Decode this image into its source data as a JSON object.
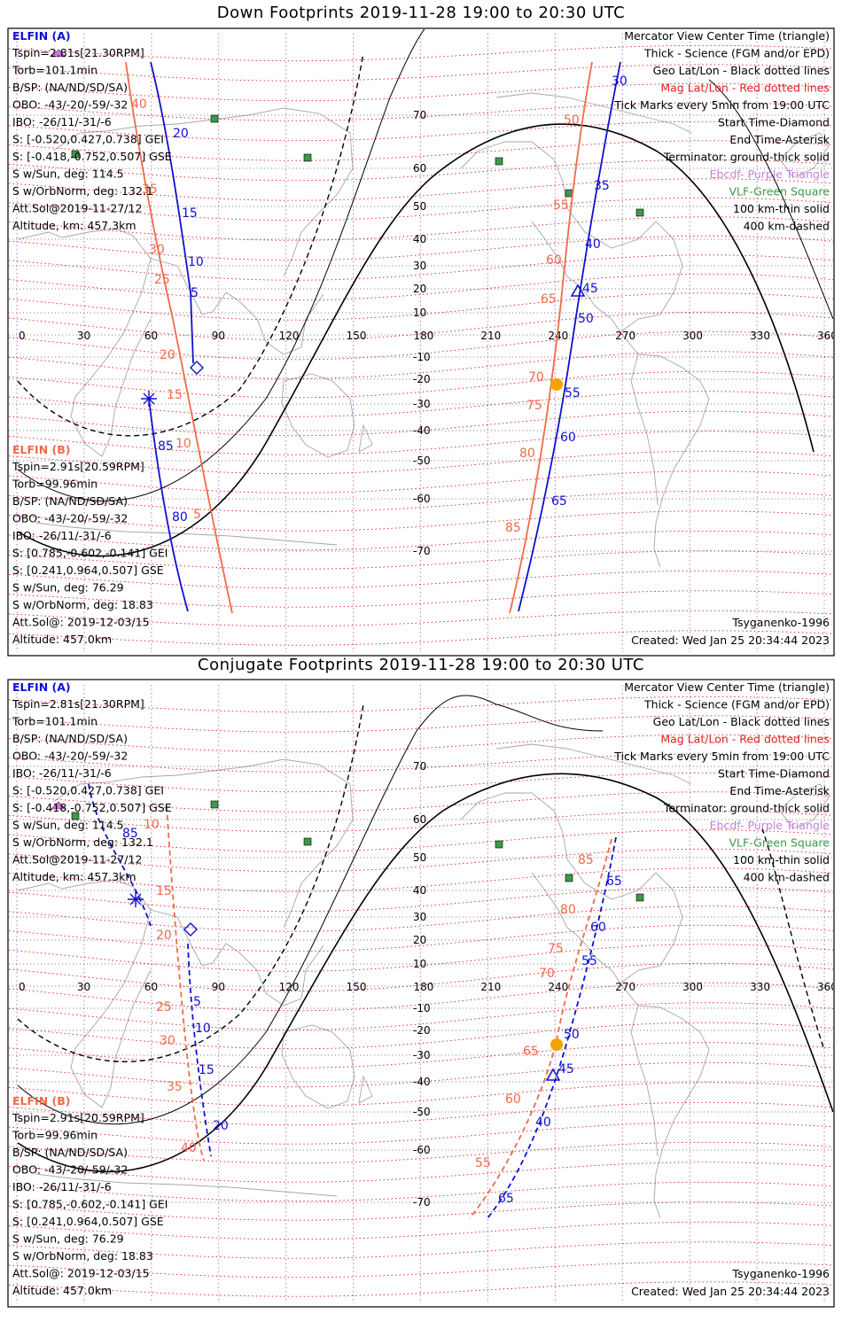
{
  "panels": [
    {
      "id": "down",
      "title": "Down Footprints 2019-11-28 19:00 to 20:30 UTC",
      "elfin_a": {
        "header": "ELFIN (A)",
        "lines": [
          "Tspin=2.81s[21.30RPM]",
          "Torb=101.1min",
          "B/SP: (NA/ND/SD/SA)",
          "OBO: -43/-20/-59/-32",
          "IBO: -26/11/-31/-6",
          "S: [-0.520,0.427,0.738] GEI",
          "S: [-0.418,-0.752,0.507] GSE",
          "S w/Sun, deg: 114.5",
          "S w/OrbNorm, deg: 132.1",
          "Att.Sol@2019-11-27/12",
          "Altitude, km: 457.3km"
        ]
      },
      "elfin_b": {
        "header": "ELFIN (B)",
        "lines": [
          "Tspin=2.91s[20.59RPM]",
          "Torb=99.96min",
          "B/SP: (NA/ND/SD/SA)",
          "OBO: -43/-20/-59/-32",
          "IBO: -26/11/-31/-6",
          "S: [0.785,-0.602,-0.141] GEI",
          "S: [0.241,0.964,0.507] GSE",
          "S w/Sun, deg: 76.29",
          "S w/OrbNorm, deg: 18.83",
          "Att.Sol@: 2019-12-03/15",
          "Altitude: 457.0km"
        ]
      },
      "legend": [
        {
          "text": "Mercator View Center Time (triangle)",
          "color": "#000000"
        },
        {
          "text": "Thick - Science (FGM and/or EPD)",
          "color": "#000000"
        },
        {
          "text": "Geo Lat/Lon - Black dotted lines",
          "color": "#000000"
        },
        {
          "text": "Mag Lat/Lon - Red dotted lines",
          "color": "#e0201c"
        },
        {
          "text": "Tick Marks every 5min from 19:00 UTC",
          "color": "#000000"
        },
        {
          "text": "Start Time-Diamond",
          "color": "#000000"
        },
        {
          "text": "End Time-Asterisk",
          "color": "#000000"
        },
        {
          "text": "Terminator: ground-thick solid",
          "color": "#000000"
        },
        {
          "text": "Ebcdf- Purple Triangle",
          "color": "#c77fd8"
        },
        {
          "text": "VLF-Green Square",
          "color": "#3a9a4a"
        },
        {
          "text": "100 km-thin solid",
          "color": "#000000"
        },
        {
          "text": "400 km-dashed",
          "color": "#000000"
        }
      ],
      "model": "Tsyganenko-1996",
      "created": "Created: Wed Jan 25 20:34:44 2023"
    },
    {
      "id": "conjugate",
      "title": "Conjugate Footprints 2019-11-28 19:00 to 20:30 UTC",
      "elfin_a": {
        "header": "ELFIN (A)",
        "lines": [
          "Tspin=2.81s[21.30RPM]",
          "Torb=101.1min",
          "B/SP: (NA/ND/SD/SA)",
          "OBO: -43/-20/-59/-32",
          "IBO: -26/11/-31/-6",
          "S: [-0.520,0.427,0.738] GEI",
          "S: [-0.418,-0.752,0.507] GSE",
          "S w/Sun, deg: 114.5",
          "S w/OrbNorm, deg: 132.1",
          "Att.Sol@2019-11-27/12",
          "Altitude, km: 457.3km"
        ]
      },
      "elfin_b": {
        "header": "ELFIN (B)",
        "lines": [
          "Tspin=2.91s[20.59RPM]",
          "Torb=99.96min",
          "B/SP: (NA/ND/SD/SA)",
          "OBO: -43/-20/-59/-32",
          "IBO: -26/11/-31/-6",
          "S: [0.785,-0.602,-0.141] GEI",
          "S: [0.241,0.964,0.507] GSE",
          "S w/Sun, deg: 76.29",
          "S w/OrbNorm, deg: 18.83",
          "Att.Sol@: 2019-12-03/15",
          "Altitude: 457.0km"
        ]
      },
      "legend": [
        {
          "text": "Mercator View Center Time (triangle)",
          "color": "#000000"
        },
        {
          "text": "Thick - Science (FGM and/or EPD)",
          "color": "#000000"
        },
        {
          "text": "Geo Lat/Lon - Black dotted lines",
          "color": "#000000"
        },
        {
          "text": "Mag Lat/Lon - Red dotted lines",
          "color": "#e0201c"
        },
        {
          "text": "Tick Marks every 5min from 19:00 UTC",
          "color": "#000000"
        },
        {
          "text": "Start Time-Diamond",
          "color": "#000000"
        },
        {
          "text": "End Time-Asterisk",
          "color": "#000000"
        },
        {
          "text": "Terminator: ground-thick solid",
          "color": "#000000"
        },
        {
          "text": "Ebcdf- Purple Triangle",
          "color": "#c77fd8"
        },
        {
          "text": "VLF-Green Square",
          "color": "#3a9a4a"
        },
        {
          "text": "100 km-thin solid",
          "color": "#000000"
        },
        {
          "text": "400 km-dashed",
          "color": "#000000"
        }
      ],
      "model": "Tsyganenko-1996",
      "created": "Created: Wed Jan 25 20:34:44 2023"
    }
  ],
  "map_axes": {
    "lon_labels": [
      "0",
      "30",
      "60",
      "90",
      "120",
      "150",
      "180",
      "210",
      "240",
      "270",
      "300",
      "330",
      "360"
    ],
    "lat_labels": [
      "70",
      "60",
      "50",
      "40",
      "30",
      "20",
      "10",
      "0",
      "-10",
      "-20",
      "-30",
      "-40",
      "-50",
      "-60",
      "-70"
    ]
  },
  "tracks": {
    "down": {
      "a1": {
        "labels": [
          "20",
          "15",
          "10",
          "5"
        ],
        "color": "#1010d0"
      },
      "b1": {
        "labels": [
          "40",
          "35",
          "30",
          "25",
          "20",
          "15",
          "10",
          "5"
        ],
        "color": "#f06a4a"
      },
      "a1b": {
        "labels": [
          "85",
          "80"
        ],
        "color": "#1010d0"
      },
      "a2": {
        "labels": [
          "30",
          "35",
          "40",
          "45",
          "50",
          "55",
          "60",
          "65"
        ],
        "color": "#1010d0"
      },
      "b2": {
        "labels": [
          "50",
          "55",
          "60",
          "65",
          "70",
          "75",
          "80",
          "85"
        ],
        "color": "#f06a4a"
      }
    },
    "conjugate": {
      "a1": {
        "labels": [
          "85",
          "5",
          "10",
          "15",
          "20"
        ],
        "color": "#1010d0"
      },
      "b1": {
        "labels": [
          "10",
          "15",
          "20",
          "25",
          "30",
          "35",
          "40"
        ],
        "color": "#f06a4a"
      },
      "a2": {
        "labels": [
          "65",
          "60",
          "55",
          "50",
          "45",
          "40",
          "65"
        ],
        "color": "#1010d0"
      },
      "b2": {
        "labels": [
          "85",
          "80",
          "75",
          "70",
          "65",
          "60",
          "55"
        ],
        "color": "#f06a4a"
      }
    }
  },
  "colors": {
    "elfin_a": "#1010d0",
    "elfin_b": "#f06a4a",
    "mag_grid": "#e0201c",
    "geo_grid": "#c77fd8",
    "vlf": "#3a9a4a",
    "sun_marker": "#f5a300",
    "coast": "#a6a6a6"
  }
}
